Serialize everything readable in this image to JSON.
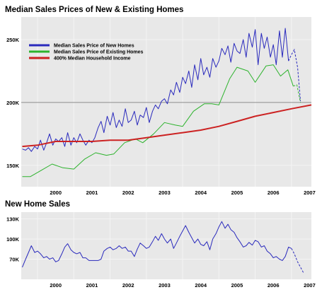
{
  "chart_data": [
    {
      "type": "line",
      "title": "Median Sales Prices of New & Existing Homes",
      "x_ticks": [
        "2000",
        "2001",
        "2002",
        "2003",
        "2004",
        "2005",
        "2006",
        "2007"
      ],
      "y_ticks": [
        "150K",
        "200K",
        "250K"
      ],
      "xlim": [
        1999.55,
        2007.55
      ],
      "ylim": [
        133000,
        268000
      ],
      "reference_line": 200000,
      "legend_position": "top-left",
      "series": [
        {
          "name": "Median Sales Price of New Homes",
          "color": "#2a2abd",
          "x": [
            1999.58,
            1999.67,
            1999.75,
            1999.83,
            1999.92,
            2000.0,
            2000.08,
            2000.17,
            2000.25,
            2000.33,
            2000.42,
            2000.5,
            2000.58,
            2000.67,
            2000.75,
            2000.83,
            2000.92,
            2001.0,
            2001.08,
            2001.17,
            2001.25,
            2001.33,
            2001.42,
            2001.5,
            2001.58,
            2001.67,
            2001.75,
            2001.83,
            2001.92,
            2002.0,
            2002.08,
            2002.17,
            2002.25,
            2002.33,
            2002.42,
            2002.5,
            2002.58,
            2002.67,
            2002.75,
            2002.83,
            2002.92,
            2003.0,
            2003.08,
            2003.17,
            2003.25,
            2003.33,
            2003.42,
            2003.5,
            2003.58,
            2003.67,
            2003.75,
            2003.83,
            2003.92,
            2004.0,
            2004.08,
            2004.17,
            2004.25,
            2004.33,
            2004.42,
            2004.5,
            2004.58,
            2004.67,
            2004.75,
            2004.83,
            2004.92,
            2005.0,
            2005.08,
            2005.17,
            2005.25,
            2005.33,
            2005.42,
            2005.5,
            2005.58,
            2005.67,
            2005.75,
            2005.83,
            2005.92,
            2006.0,
            2006.08,
            2006.17,
            2006.25,
            2006.33,
            2006.42,
            2006.5,
            2006.58,
            2006.67,
            2006.75,
            2006.83,
            2006.92
          ],
          "y": [
            163000,
            162000,
            164000,
            161000,
            165000,
            163000,
            170000,
            162000,
            168000,
            175000,
            166000,
            171000,
            169000,
            172000,
            165000,
            176000,
            166000,
            172000,
            168000,
            175000,
            170000,
            166000,
            170000,
            168000,
            172000,
            180000,
            185000,
            176000,
            189000,
            182000,
            192000,
            180000,
            186000,
            181000,
            195000,
            184000,
            186000,
            193000,
            182000,
            190000,
            188000,
            196000,
            184000,
            193000,
            198000,
            195000,
            201000,
            203000,
            199000,
            210000,
            206000,
            216000,
            208000,
            220000,
            215000,
            225000,
            212000,
            230000,
            218000,
            235000,
            222000,
            228000,
            220000,
            235000,
            228000,
            233000,
            243000,
            238000,
            245000,
            232000,
            247000,
            241000,
            239000,
            250000,
            236000,
            255000,
            244000,
            258000,
            230000,
            255000,
            243000,
            252000,
            236000,
            246000,
            230000,
            257000,
            236000,
            259000,
            233000
          ],
          "projected": {
            "x": [
              2006.92,
              2007.0,
              2007.08,
              2007.17,
              2007.25
            ],
            "y": [
              233000,
              238000,
              242000,
              228000,
              201000
            ]
          }
        },
        {
          "name": "Median Sales Price of Existing Homes",
          "color": "#2db32d",
          "x": [
            1999.58,
            1999.8,
            2000.1,
            2000.4,
            2000.7,
            2001.0,
            2001.3,
            2001.6,
            2001.9,
            2002.1,
            2002.4,
            2002.7,
            2002.9,
            2003.2,
            2003.5,
            2003.8,
            2004.0,
            2004.3,
            2004.6,
            2004.8,
            2005.0,
            2005.3,
            2005.5,
            2005.8,
            2006.0,
            2006.3,
            2006.5,
            2006.7,
            2006.9,
            2007.05
          ],
          "y": [
            141000,
            141000,
            146000,
            151000,
            148000,
            147000,
            155000,
            160000,
            158000,
            159000,
            168000,
            171000,
            168000,
            175000,
            184000,
            182000,
            181000,
            193000,
            199000,
            199000,
            198000,
            219000,
            228000,
            225000,
            216000,
            229000,
            230000,
            221000,
            226000,
            213000
          ],
          "projected": {
            "x": [
              2007.05,
              2007.15,
              2007.25
            ],
            "y": [
              213000,
              214000,
              200000
            ]
          }
        },
        {
          "name": "400% Median Household Income",
          "color": "#cc2222",
          "x": [
            1999.58,
            2000.0,
            2000.5,
            2001.0,
            2001.5,
            2002.0,
            2002.5,
            2003.0,
            2003.5,
            2004.0,
            2004.5,
            2005.0,
            2005.5,
            2006.0,
            2006.5,
            2007.0,
            2007.55
          ],
          "y": [
            165000,
            166000,
            169000,
            169000,
            169000,
            170000,
            170000,
            172000,
            174000,
            176000,
            178000,
            181000,
            185000,
            189000,
            192000,
            195000,
            198000
          ]
        }
      ]
    },
    {
      "type": "line",
      "title": "New Home Sales",
      "x_ticks": [
        "2000",
        "2001",
        "2002",
        "2003",
        "2004",
        "2005",
        "2006",
        "2007"
      ],
      "y_ticks": [
        "70K",
        "100K",
        "130K"
      ],
      "xlim": [
        1999.55,
        2007.55
      ],
      "ylim": [
        40000,
        140000
      ],
      "series": [
        {
          "name": "",
          "color": "#2a2abd",
          "x": [
            1999.58,
            1999.67,
            1999.75,
            1999.83,
            1999.92,
            2000.0,
            2000.08,
            2000.17,
            2000.25,
            2000.33,
            2000.42,
            2000.5,
            2000.58,
            2000.67,
            2000.75,
            2000.83,
            2000.92,
            2001.0,
            2001.08,
            2001.17,
            2001.25,
            2001.33,
            2001.42,
            2001.5,
            2001.58,
            2001.67,
            2001.75,
            2001.83,
            2001.92,
            2002.0,
            2002.08,
            2002.17,
            2002.25,
            2002.33,
            2002.42,
            2002.5,
            2002.58,
            2002.67,
            2002.75,
            2002.83,
            2002.92,
            2003.0,
            2003.08,
            2003.17,
            2003.25,
            2003.33,
            2003.42,
            2003.5,
            2003.58,
            2003.67,
            2003.75,
            2003.83,
            2003.92,
            2004.0,
            2004.08,
            2004.17,
            2004.25,
            2004.33,
            2004.42,
            2004.5,
            2004.58,
            2004.67,
            2004.75,
            2004.83,
            2004.92,
            2005.0,
            2005.08,
            2005.17,
            2005.25,
            2005.33,
            2005.42,
            2005.5,
            2005.58,
            2005.67,
            2005.75,
            2005.83,
            2005.92,
            2006.0,
            2006.08,
            2006.17,
            2006.25,
            2006.33,
            2006.42,
            2006.5,
            2006.58,
            2006.67,
            2006.75,
            2006.83,
            2006.92,
            2007.0
          ],
          "y": [
            58000,
            70000,
            80000,
            90000,
            80000,
            82000,
            78000,
            72000,
            74000,
            70000,
            72000,
            66000,
            68000,
            78000,
            88000,
            93000,
            84000,
            80000,
            78000,
            80000,
            72000,
            72000,
            68000,
            68000,
            68000,
            68000,
            70000,
            82000,
            86000,
            88000,
            84000,
            86000,
            90000,
            86000,
            88000,
            82000,
            82000,
            74000,
            85000,
            94000,
            90000,
            86000,
            88000,
            96000,
            104000,
            98000,
            108000,
            100000,
            94000,
            100000,
            86000,
            94000,
            104000,
            112000,
            120000,
            110000,
            102000,
            94000,
            100000,
            92000,
            90000,
            96000,
            84000,
            100000,
            108000,
            118000,
            126000,
            116000,
            122000,
            114000,
            110000,
            102000,
            96000,
            88000,
            90000,
            95000,
            91000,
            98000,
            96000,
            88000,
            90000,
            82000,
            78000,
            72000,
            74000,
            70000,
            68000,
            74000,
            88000,
            86000
          ],
          "projected": {
            "x": [
              2007.0,
              2007.08,
              2007.17,
              2007.25,
              2007.33
            ],
            "y": [
              86000,
              78000,
              66000,
              58000,
              50000
            ]
          }
        }
      ]
    }
  ]
}
